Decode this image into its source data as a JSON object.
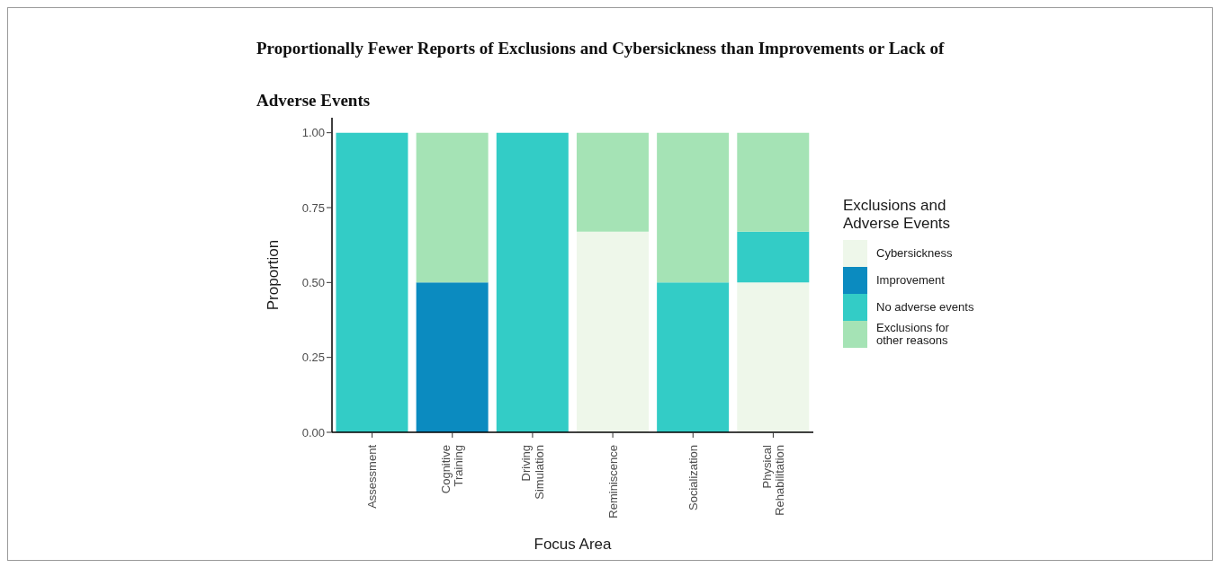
{
  "chart_data": {
    "type": "bar",
    "stacked": true,
    "title": "Proportionally Fewer Reports of Exclusions and Cybersickness than Improvements or Lack of Adverse Events",
    "xlabel": "Focus Area",
    "ylabel": "Proportion",
    "legend_title": "Exclusions and Adverse Events",
    "legend": "right",
    "grid": false,
    "categories": [
      "Assessment",
      "Cognitive Training",
      "Driving Simulation",
      "Reminiscence",
      "Socialization",
      "Physical Rehabilitation"
    ],
    "series": [
      {
        "name": "Cybersickness",
        "color": "#eef7ea",
        "values": [
          0,
          0,
          0,
          0.67,
          0,
          0.5
        ]
      },
      {
        "name": "Improvement",
        "color": "#0b8bc0",
        "values": [
          0,
          0.5,
          0,
          0,
          0,
          0
        ]
      },
      {
        "name": "No adverse events",
        "color": "#33ccc6",
        "values": [
          1,
          0,
          1,
          0,
          0.5,
          0.17
        ]
      },
      {
        "name": "Exclusions for other reasons",
        "color": "#a5e3b5",
        "values": [
          0,
          0.5,
          0,
          0.33,
          0.5,
          0.33
        ]
      }
    ],
    "ylim": [
      0,
      1.05
    ],
    "yticks": [
      {
        "value": 0,
        "label": "0.00"
      },
      {
        "value": 0.25,
        "label": "0.25"
      },
      {
        "value": 0.5,
        "label": "0.50"
      },
      {
        "value": 0.75,
        "label": "0.75"
      },
      {
        "value": 1,
        "label": "1.00"
      }
    ]
  }
}
